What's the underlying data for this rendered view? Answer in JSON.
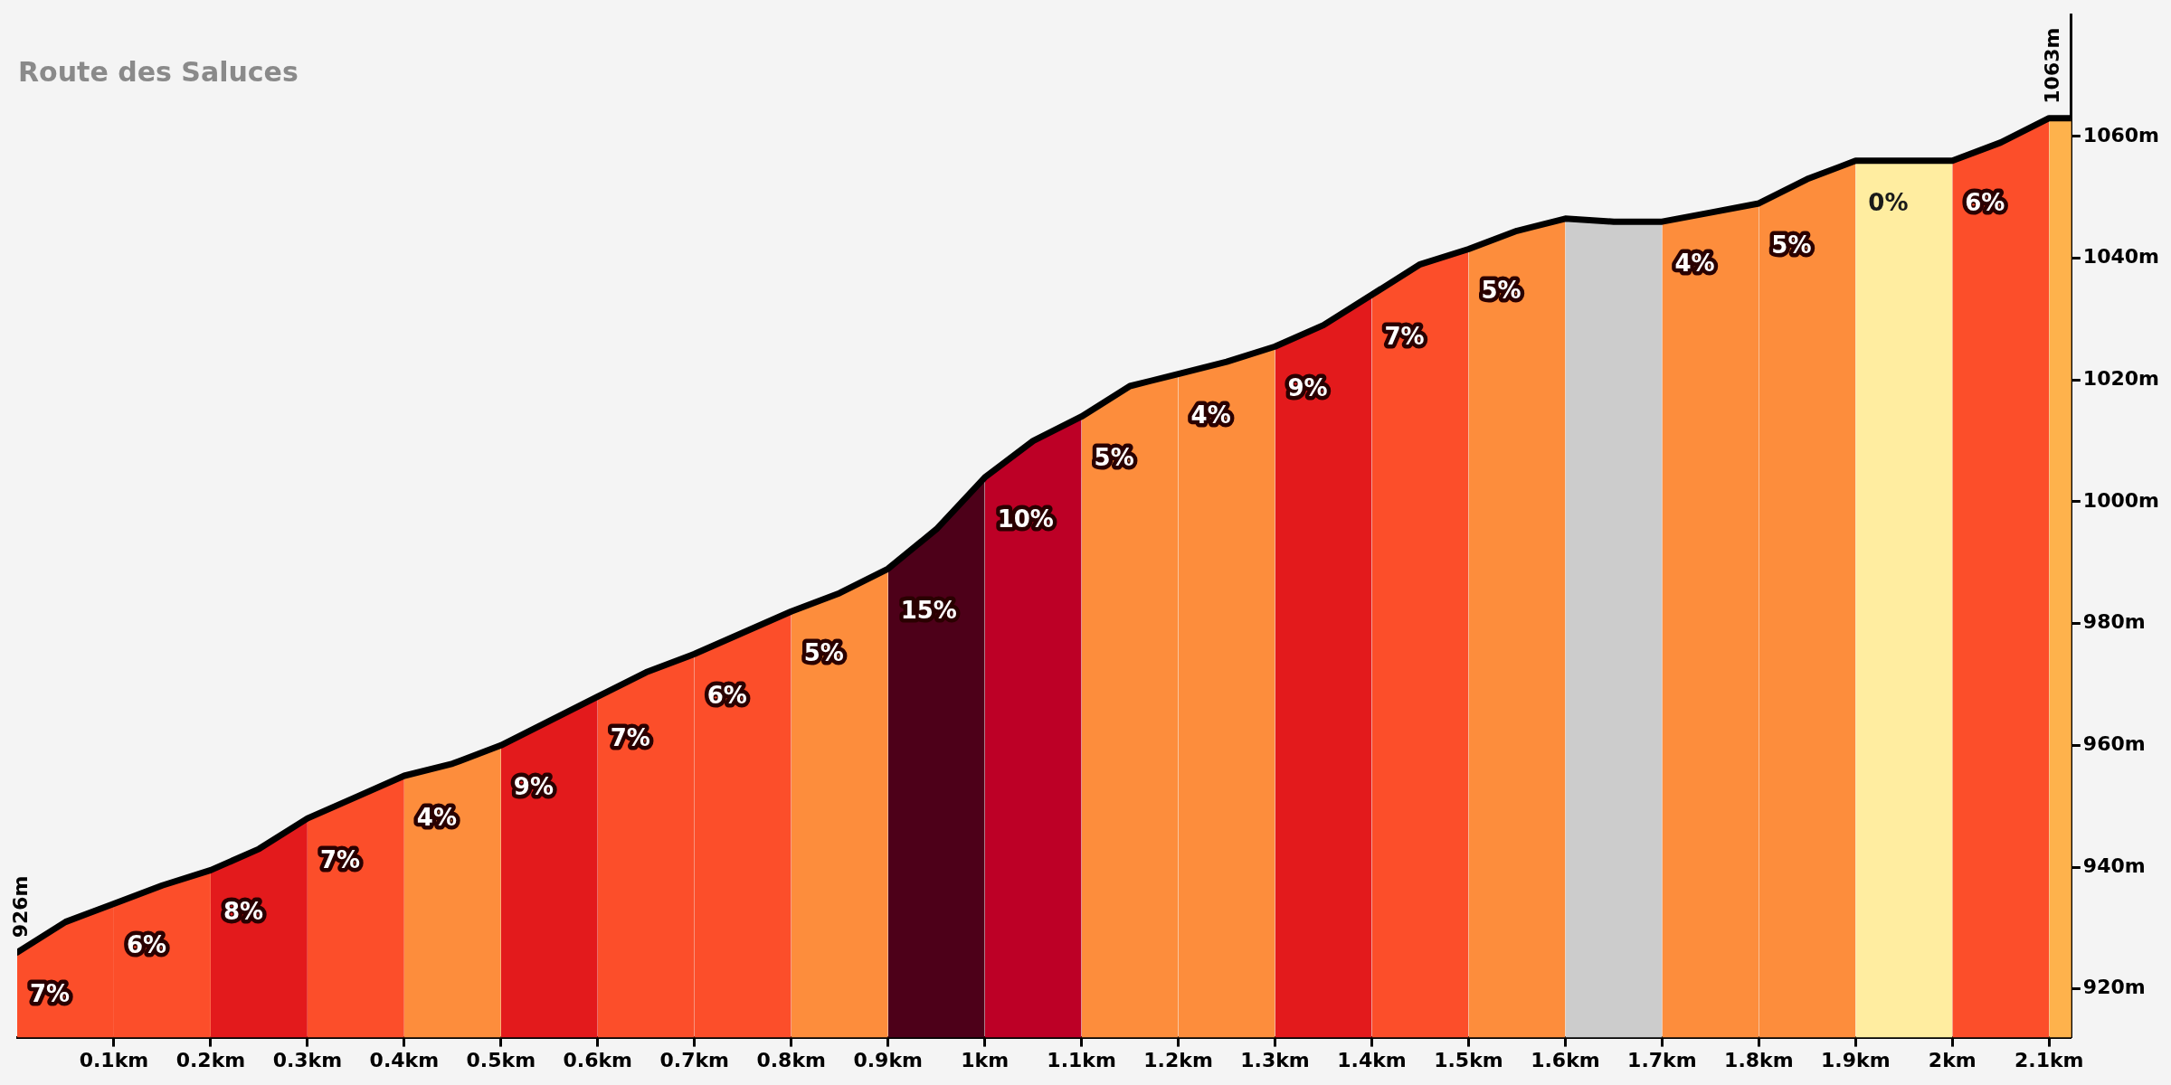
{
  "chart_data": {
    "type": "area",
    "title": "Route des Saluces",
    "xlim": [
      0,
      2.123
    ],
    "ylim": [
      912,
      1080
    ],
    "xticks": [
      {
        "value": 0.1,
        "label": "0.1km"
      },
      {
        "value": 0.2,
        "label": "0.2km"
      },
      {
        "value": 0.3,
        "label": "0.3km"
      },
      {
        "value": 0.4,
        "label": "0.4km"
      },
      {
        "value": 0.5,
        "label": "0.5km"
      },
      {
        "value": 0.6,
        "label": "0.6km"
      },
      {
        "value": 0.7,
        "label": "0.7km"
      },
      {
        "value": 0.8,
        "label": "0.8km"
      },
      {
        "value": 0.9,
        "label": "0.9km"
      },
      {
        "value": 1,
        "label": "1km"
      },
      {
        "value": 1.1,
        "label": "1.1km"
      },
      {
        "value": 1.2,
        "label": "1.2km"
      },
      {
        "value": 1.3,
        "label": "1.3km"
      },
      {
        "value": 1.4,
        "label": "1.4km"
      },
      {
        "value": 1.5,
        "label": "1.5km"
      },
      {
        "value": 1.6,
        "label": "1.6km"
      },
      {
        "value": 1.7,
        "label": "1.7km"
      },
      {
        "value": 1.8,
        "label": "1.8km"
      },
      {
        "value": 1.9,
        "label": "1.9km"
      },
      {
        "value": 2,
        "label": "2km"
      },
      {
        "value": 2.1,
        "label": "2.1km"
      }
    ],
    "yticks": [
      {
        "value": 920,
        "label": "920m"
      },
      {
        "value": 940,
        "label": "940m"
      },
      {
        "value": 960,
        "label": "960m"
      },
      {
        "value": 980,
        "label": "980m"
      },
      {
        "value": 1000,
        "label": "1000m"
      },
      {
        "value": 1020,
        "label": "1020m"
      },
      {
        "value": 1040,
        "label": "1040m"
      },
      {
        "value": 1060,
        "label": "1060m"
      }
    ],
    "grid": false,
    "legend": false,
    "marker": "none",
    "series": [
      {
        "color": "#fc4e2a",
        "x": [
          0,
          0.05,
          0.1
        ],
        "values": [
          926,
          931,
          934
        ]
      },
      {
        "color": "#fc4e2a",
        "x": [
          0.1,
          0.15,
          0.2
        ],
        "values": [
          934,
          937,
          939.5
        ]
      },
      {
        "color": "#e31a1c",
        "x": [
          0.2,
          0.25,
          0.3
        ],
        "values": [
          939.5,
          943,
          948
        ]
      },
      {
        "color": "#fc4e2a",
        "x": [
          0.3,
          0.35,
          0.4
        ],
        "values": [
          948,
          951.5,
          955
        ]
      },
      {
        "color": "#fd8d3c",
        "x": [
          0.4,
          0.45,
          0.5
        ],
        "values": [
          955,
          957,
          960
        ]
      },
      {
        "color": "#e31a1c",
        "x": [
          0.5,
          0.55,
          0.6
        ],
        "values": [
          960,
          964,
          968
        ]
      },
      {
        "color": "#fc4e2a",
        "x": [
          0.6,
          0.65,
          0.7
        ],
        "values": [
          968,
          972,
          975
        ]
      },
      {
        "color": "#fc4e2a",
        "x": [
          0.7,
          0.75,
          0.8
        ],
        "values": [
          975,
          978.5,
          982
        ]
      },
      {
        "color": "#fd8d3c",
        "x": [
          0.8,
          0.85,
          0.9
        ],
        "values": [
          982,
          985,
          989
        ]
      },
      {
        "color": "#4d0019",
        "x": [
          0.9,
          0.95,
          1
        ],
        "values": [
          989,
          995.5,
          1004
        ]
      },
      {
        "color": "#bd0026",
        "x": [
          1,
          1.05,
          1.1
        ],
        "values": [
          1004,
          1010,
          1014
        ]
      },
      {
        "color": "#fd8d3c",
        "x": [
          1.1,
          1.15,
          1.2
        ],
        "values": [
          1014,
          1019,
          1021
        ]
      },
      {
        "color": "#fd8d3c",
        "x": [
          1.2,
          1.25,
          1.3
        ],
        "values": [
          1021,
          1023,
          1025.5
        ]
      },
      {
        "color": "#e31a1c",
        "x": [
          1.3,
          1.35,
          1.4
        ],
        "values": [
          1025.5,
          1029,
          1034
        ]
      },
      {
        "color": "#fc4e2a",
        "x": [
          1.4,
          1.45,
          1.5
        ],
        "values": [
          1034,
          1039,
          1041.5
        ]
      },
      {
        "color": "#fd8d3c",
        "x": [
          1.5,
          1.55,
          1.6
        ],
        "values": [
          1041.5,
          1044.5,
          1046.5
        ]
      },
      {
        "color": "#cccccc",
        "x": [
          1.6,
          1.65,
          1.7
        ],
        "values": [
          1046.5,
          1046,
          1046
        ]
      },
      {
        "color": "#fd8d3c",
        "x": [
          1.7,
          1.75,
          1.8
        ],
        "values": [
          1046,
          1047.5,
          1049
        ]
      },
      {
        "color": "#fd8d3c",
        "x": [
          1.8,
          1.85,
          1.9
        ],
        "values": [
          1049,
          1053,
          1056
        ]
      },
      {
        "color": "#ffeda0",
        "x": [
          1.9,
          1.95,
          2
        ],
        "values": [
          1056,
          1056,
          1056
        ]
      },
      {
        "color": "#fc4e2a",
        "x": [
          2,
          2.05,
          2.1
        ],
        "values": [
          1056,
          1059,
          1063
        ]
      },
      {
        "color": "#feb24c",
        "x": [
          2.1,
          2.123
        ],
        "values": [
          1063,
          1063
        ]
      },
      {
        "type": "line",
        "color": "#000000",
        "x": [
          0,
          0.05,
          0.1,
          0.15,
          0.2,
          0.25,
          0.3,
          0.35,
          0.4,
          0.45,
          0.5,
          0.55,
          0.6,
          0.65,
          0.7,
          0.75,
          0.8,
          0.85,
          0.9,
          0.95,
          1,
          1.05,
          1.1,
          1.15,
          1.2,
          1.25,
          1.3,
          1.35,
          1.4,
          1.45,
          1.5,
          1.55,
          1.6,
          1.65,
          1.7,
          1.75,
          1.8,
          1.85,
          1.9,
          1.95,
          2,
          2.05,
          2.1,
          2.123
        ],
        "values": [
          926,
          931,
          934,
          937,
          939.5,
          943,
          948,
          951.5,
          955,
          957,
          960,
          964,
          968,
          972,
          975,
          978.5,
          982,
          985,
          989,
          995.5,
          1004,
          1010,
          1014,
          1019,
          1021,
          1023,
          1025.5,
          1029,
          1034,
          1039,
          1041.5,
          1044.5,
          1046.5,
          1046,
          1046,
          1047.5,
          1049,
          1053,
          1056,
          1056,
          1056,
          1059,
          1063,
          1063
        ]
      }
    ],
    "annotations": [
      {
        "text": "7%",
        "x": 0,
        "y": 926
      },
      {
        "text": "6%",
        "x": 0.1,
        "y": 934
      },
      {
        "text": "8%",
        "x": 0.2,
        "y": 939.5
      },
      {
        "text": "7%",
        "x": 0.3,
        "y": 948
      },
      {
        "text": "4%",
        "x": 0.4,
        "y": 955
      },
      {
        "text": "9%",
        "x": 0.5,
        "y": 960
      },
      {
        "text": "7%",
        "x": 0.6,
        "y": 968
      },
      {
        "text": "6%",
        "x": 0.7,
        "y": 975
      },
      {
        "text": "5%",
        "x": 0.8,
        "y": 982
      },
      {
        "text": "15%",
        "x": 0.9,
        "y": 989
      },
      {
        "text": "10%",
        "x": 1,
        "y": 1004
      },
      {
        "text": "5%",
        "x": 1.1,
        "y": 1014
      },
      {
        "text": "4%",
        "x": 1.2,
        "y": 1021
      },
      {
        "text": "9%",
        "x": 1.3,
        "y": 1025.5
      },
      {
        "text": "7%",
        "x": 1.4,
        "y": 1034
      },
      {
        "text": "5%",
        "x": 1.5,
        "y": 1041.5
      },
      {
        "text": "4%",
        "x": 1.7,
        "y": 1046
      },
      {
        "text": "5%",
        "x": 1.8,
        "y": 1049
      },
      {
        "text": "0%",
        "x": 1.9,
        "y": 1056
      },
      {
        "text": "6%",
        "x": 2,
        "y": 1056
      },
      {
        "text": "926m",
        "x": 0,
        "y": 926
      },
      {
        "text": "1063m",
        "x": 2.123,
        "y": 1063
      }
    ]
  }
}
